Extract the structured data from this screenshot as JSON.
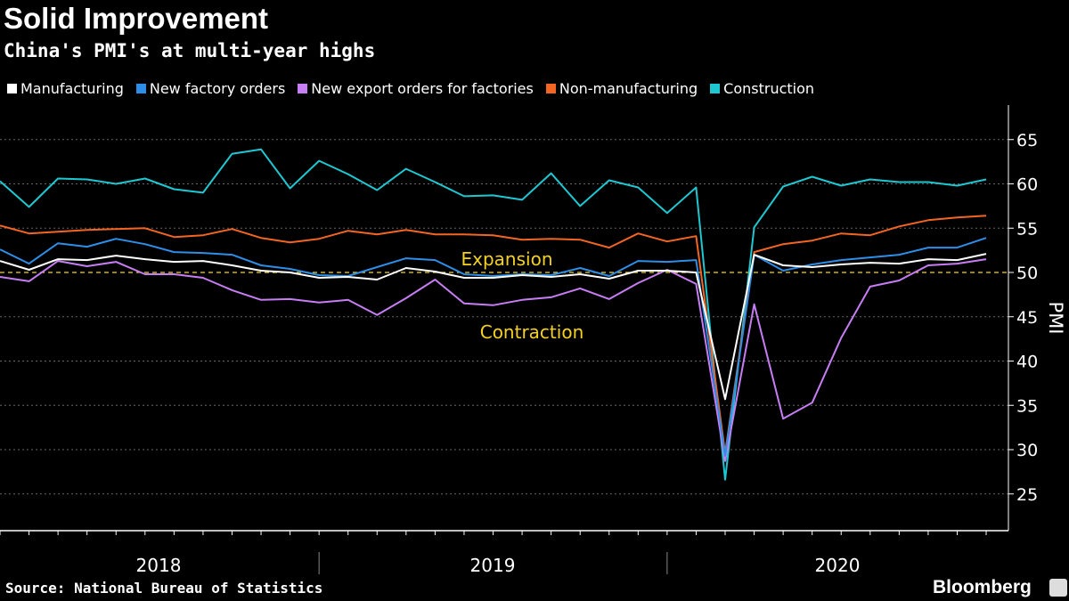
{
  "chart_data": {
    "type": "line",
    "title": "Solid Improvement",
    "subtitle": "China's PMI's at multi-year highs",
    "ylabel": "PMI",
    "ylim": [
      21,
      69
    ],
    "yticks": [
      25,
      30,
      35,
      40,
      45,
      50,
      55,
      60,
      65
    ],
    "x_start": "2018-01",
    "x_end": "2020-11",
    "year_labels": [
      "2018",
      "2019",
      "2020"
    ],
    "grid": true,
    "legend": "top",
    "reference_line": {
      "value": 50,
      "color": "#f5d21f"
    },
    "annotations": {
      "expansion": "Expansion",
      "contraction": "Contraction"
    },
    "series": [
      {
        "name": "Manufacturing",
        "color": "#ffffff",
        "values": [
          51.3,
          50.3,
          51.5,
          51.4,
          51.9,
          51.5,
          51.2,
          51.3,
          50.8,
          50.2,
          50.0,
          49.4,
          49.5,
          49.2,
          50.5,
          50.1,
          49.4,
          49.4,
          49.7,
          49.5,
          49.8,
          49.3,
          50.2,
          50.2,
          50.0,
          35.7,
          52.0,
          50.8,
          50.6,
          50.9,
          51.1,
          51.0,
          51.5,
          51.4,
          52.1
        ]
      },
      {
        "name": "New factory orders",
        "color": "#2d8ee8",
        "values": [
          52.6,
          51.0,
          53.3,
          52.9,
          53.8,
          53.2,
          52.3,
          52.2,
          52.0,
          50.8,
          50.4,
          49.7,
          49.6,
          50.6,
          51.6,
          51.4,
          49.8,
          49.6,
          49.8,
          49.7,
          50.5,
          49.6,
          51.3,
          51.2,
          51.4,
          29.3,
          52.0,
          50.2,
          50.9,
          51.4,
          51.7,
          52.0,
          52.8,
          52.8,
          53.9
        ]
      },
      {
        "name": "New export orders for factories",
        "color": "#c77df3",
        "values": [
          49.5,
          49.0,
          51.3,
          50.7,
          51.2,
          49.8,
          49.8,
          49.4,
          48.0,
          46.9,
          47.0,
          46.6,
          46.9,
          45.2,
          47.1,
          49.2,
          46.5,
          46.3,
          46.9,
          47.2,
          48.2,
          47.0,
          48.8,
          50.3,
          48.7,
          28.7,
          46.4,
          33.5,
          35.3,
          42.6,
          48.4,
          49.1,
          50.8,
          51.0,
          51.5
        ]
      },
      {
        "name": "Non-manufacturing",
        "color": "#f26522",
        "values": [
          55.3,
          54.4,
          54.6,
          54.8,
          54.9,
          55.0,
          54.0,
          54.2,
          54.9,
          53.9,
          53.4,
          53.8,
          54.7,
          54.3,
          54.8,
          54.3,
          54.3,
          54.2,
          53.7,
          53.8,
          53.7,
          52.8,
          54.4,
          53.5,
          54.1,
          29.6,
          52.3,
          53.2,
          53.6,
          54.4,
          54.2,
          55.2,
          55.9,
          56.2,
          56.4
        ]
      },
      {
        "name": "Construction",
        "color": "#1ec8d2",
        "values": [
          60.3,
          57.4,
          60.6,
          60.5,
          60.0,
          60.6,
          59.4,
          59.0,
          63.4,
          63.9,
          59.5,
          62.6,
          61.1,
          59.3,
          61.7,
          60.2,
          58.6,
          58.7,
          58.2,
          61.2,
          57.5,
          60.4,
          59.6,
          56.7,
          59.6,
          26.6,
          55.1,
          59.7,
          60.8,
          59.8,
          60.5,
          60.2,
          60.2,
          59.8,
          60.5
        ]
      }
    ]
  },
  "footer": {
    "source": "Source: National Bureau of Statistics",
    "brand": "Bloomberg"
  }
}
